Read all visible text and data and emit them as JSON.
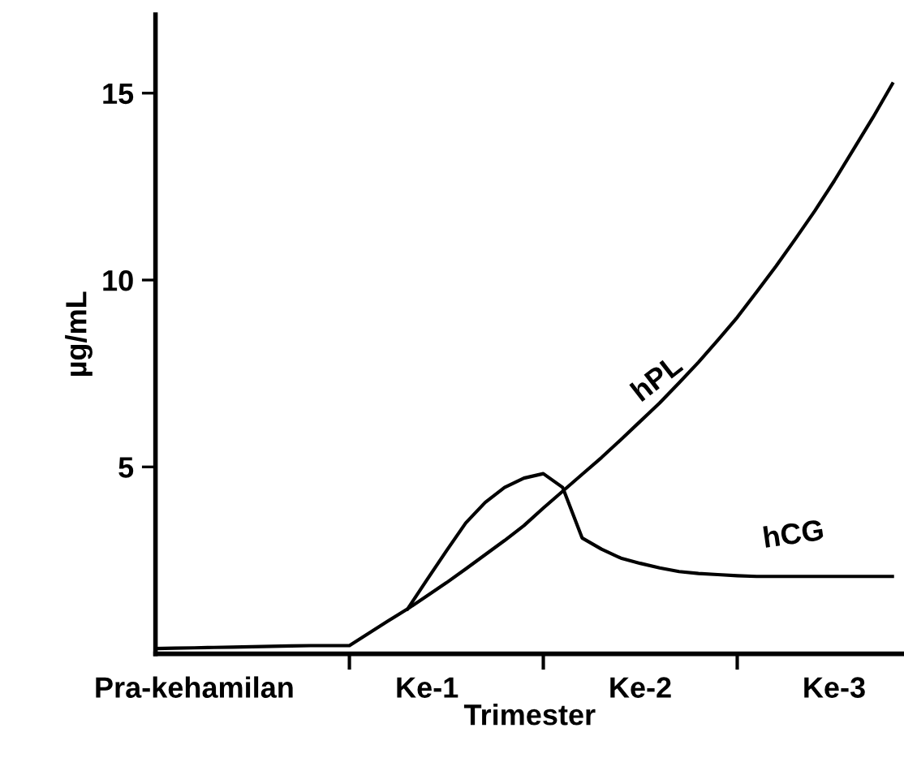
{
  "chart_data": {
    "type": "line",
    "xlabel": "Trimester",
    "ylabel": "µg/mL",
    "categories": [
      null,
      null,
      "Pra-kehamilan",
      null,
      null,
      null,
      null,
      null,
      null,
      null,
      null,
      null,
      null,
      null,
      "Ke-1",
      null,
      null,
      null,
      null,
      null,
      null,
      null,
      null,
      null,
      null,
      "Ke-2",
      null,
      null,
      null,
      null,
      null,
      null,
      null,
      null,
      null,
      "Ke-3",
      null,
      null,
      null
    ],
    "ylim": [
      0,
      17.1
    ],
    "yticks": [
      5,
      10,
      15
    ],
    "grid": false,
    "legend": false,
    "marker": "none",
    "line_style": "solid",
    "series": [
      {
        "name": "hPL",
        "color": "#000000",
        "values": [
          0.14,
          0.15,
          0.16,
          0.17,
          0.18,
          0.19,
          0.2,
          0.21,
          0.22,
          0.22,
          0.22,
          0.55,
          0.88,
          1.2,
          1.55,
          1.9,
          2.27,
          2.65,
          3.03,
          3.43,
          3.9,
          4.35,
          4.8,
          5.25,
          5.73,
          6.22,
          6.71,
          7.25,
          7.8,
          8.39,
          9.0,
          9.68,
          10.37,
          11.1,
          11.85,
          12.65,
          13.5,
          14.35,
          15.25
        ]
      },
      {
        "name": "hCG",
        "color": "#000000",
        "values": [
          null,
          null,
          null,
          null,
          null,
          null,
          null,
          null,
          null,
          null,
          null,
          null,
          null,
          1.2,
          1.98,
          2.75,
          3.5,
          4.05,
          4.45,
          4.7,
          4.82,
          4.45,
          3.1,
          2.8,
          2.56,
          2.42,
          2.3,
          2.2,
          2.15,
          2.12,
          2.09,
          2.07,
          2.07,
          2.07,
          2.07,
          2.07,
          2.07,
          2.07,
          2.07
        ]
      }
    ]
  }
}
